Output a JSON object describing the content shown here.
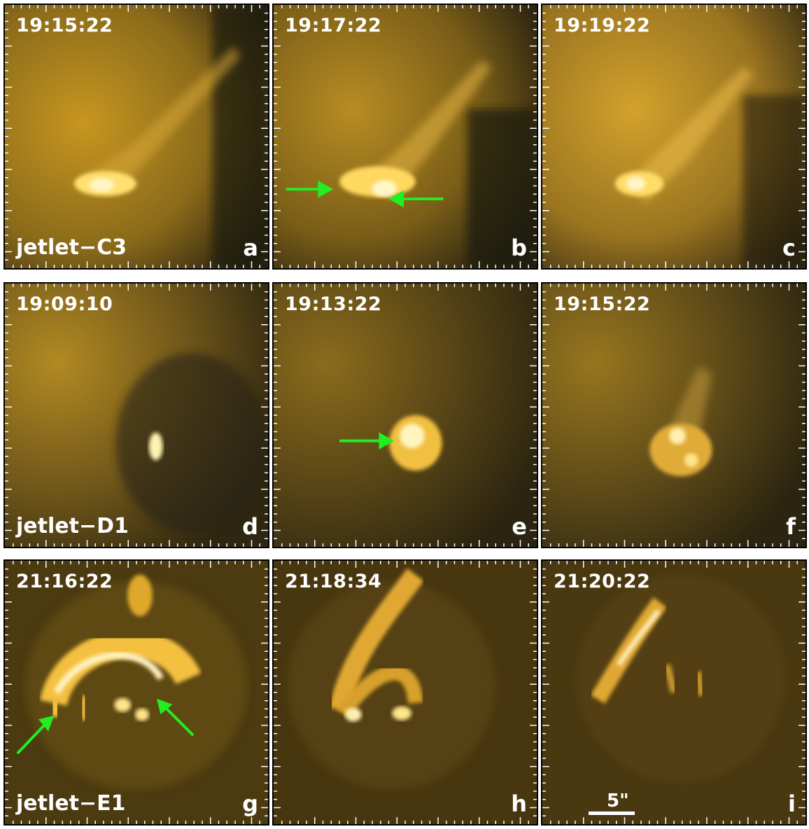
{
  "panels": [
    {
      "id": "a",
      "time": "19:15:22",
      "label": "jetlet−C3"
    },
    {
      "id": "b",
      "time": "19:17:22"
    },
    {
      "id": "c",
      "time": "19:19:22"
    },
    {
      "id": "d",
      "time": "19:09:10",
      "label": "jetlet−D1"
    },
    {
      "id": "e",
      "time": "19:13:22"
    },
    {
      "id": "f",
      "time": "19:15:22"
    },
    {
      "id": "g",
      "time": "21:16:22",
      "label": "jetlet−E1"
    },
    {
      "id": "h",
      "time": "21:18:34"
    },
    {
      "id": "i",
      "time": "21:20:22"
    }
  ],
  "scale": {
    "label": "5\""
  },
  "colors": {
    "arrow": "#22ee22",
    "text": "#ffffff"
  }
}
